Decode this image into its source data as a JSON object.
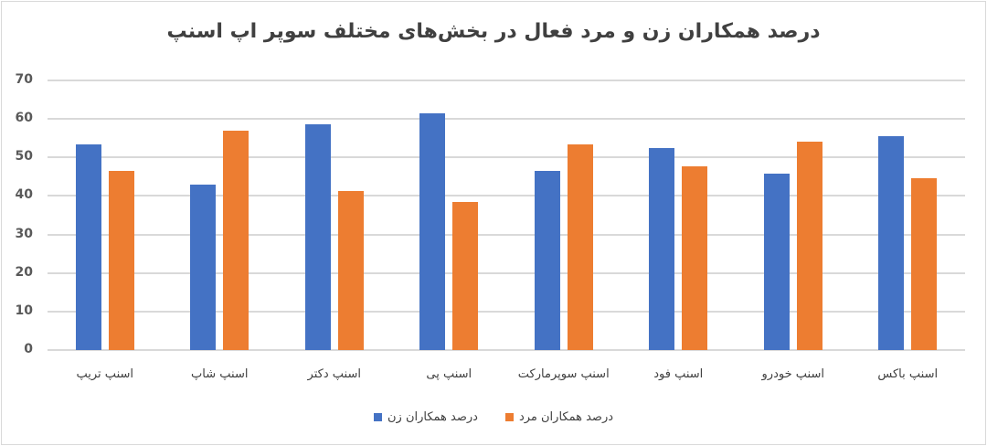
{
  "chart_data": {
    "type": "bar",
    "title": "درصد همکاران زن و مرد فعال در بخش‌های مختلف سوپر اپ اسنپ",
    "xlabel": "",
    "ylabel": "",
    "ylim": [
      0,
      70
    ],
    "yticks": [
      "0",
      "10",
      "20",
      "30",
      "40",
      "50",
      "60",
      "70"
    ],
    "grid": true,
    "legend_position": "bottom",
    "direction": "rtl",
    "categories": [
      "اسنپ باکس",
      "اسنپ خودرو",
      "اسنپ فود",
      "اسنپ سوپرمارکت",
      "اسنپ پی",
      "اسنپ دکتر",
      "اسنپ شاپ",
      "اسنپ تریپ"
    ],
    "series": [
      {
        "name": "درصد همکاران زن",
        "color": "#4472c4",
        "values": [
          55.5,
          45.8,
          52.4,
          46.5,
          61.5,
          58.6,
          43.0,
          53.4
        ]
      },
      {
        "name": "درصد همکاران مرد",
        "color": "#ed7d31",
        "values": [
          44.5,
          54.2,
          47.6,
          53.5,
          38.5,
          41.4,
          57.0,
          46.6
        ]
      }
    ]
  },
  "legend": {
    "items": [
      {
        "label": "درصد همکاران مرد",
        "color": "#ed7d31"
      },
      {
        "label": "درصد همکاران زن",
        "color": "#4472c4"
      }
    ]
  }
}
